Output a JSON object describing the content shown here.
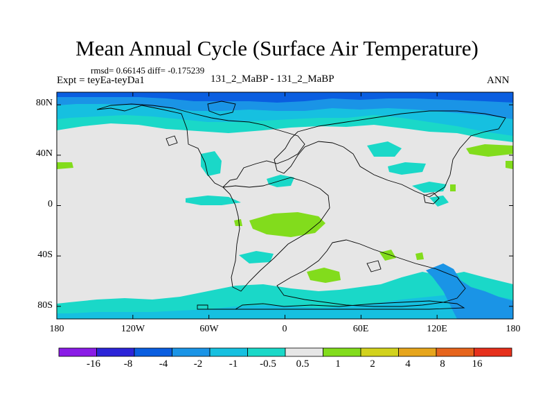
{
  "title": "Mean Annual Cycle (Surface Air Temperature)",
  "stats": "rmsd= 0.66145 diff= -0.175239",
  "expt": "Expt = teyEa-teyDa1",
  "runs": "131_2_MaBP - 131_2_MaBP",
  "season": "ANN",
  "map": {
    "lon_range": [
      -180,
      180
    ],
    "lat_range": [
      -90,
      90
    ],
    "x_ticks": [
      "180",
      "120W",
      "60W",
      "0",
      "60E",
      "120E",
      "180"
    ],
    "y_ticks": [
      "80N",
      "40N",
      "0",
      "40S",
      "80S"
    ],
    "background_fill": "#e6e6e6"
  },
  "colorbar": {
    "labels": [
      "-16",
      "-8",
      "-4",
      "-2",
      "-1",
      "-0.5",
      "0.5",
      "1",
      "2",
      "4",
      "8",
      "16"
    ],
    "colors": [
      "#8a1ce6",
      "#2c24d8",
      "#0a5ee0",
      "#1a94e6",
      "#16c0e0",
      "#1ad8c8",
      "#e6e6e6",
      "#82dc1c",
      "#d2d21c",
      "#e6a51c",
      "#e6641c",
      "#e6301c"
    ]
  }
}
